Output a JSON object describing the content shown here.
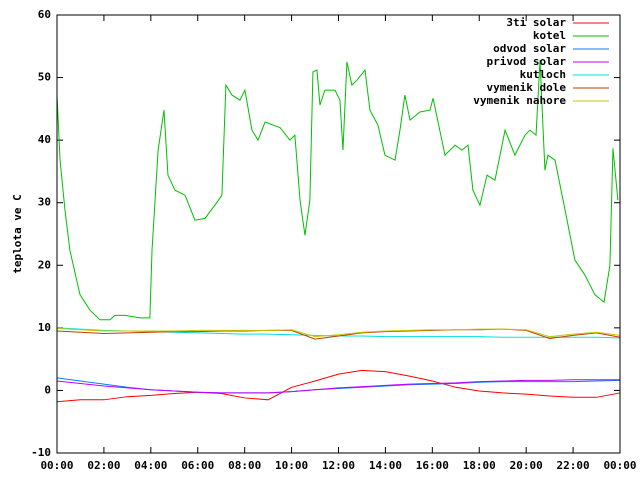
{
  "chart_data": {
    "type": "line",
    "ylabel": "teplota ve C",
    "xlim": [
      0,
      24
    ],
    "xticks": [
      {
        "value": 0,
        "label": "00:00"
      },
      {
        "value": 2,
        "label": "02:00"
      },
      {
        "value": 4,
        "label": "04:00"
      },
      {
        "value": 6,
        "label": "06:00"
      },
      {
        "value": 8,
        "label": "08:00"
      },
      {
        "value": 10,
        "label": "10:00"
      },
      {
        "value": 12,
        "label": "12:00"
      },
      {
        "value": 14,
        "label": "14:00"
      },
      {
        "value": 16,
        "label": "16:00"
      },
      {
        "value": 18,
        "label": "18:00"
      },
      {
        "value": 20,
        "label": "20:00"
      },
      {
        "value": 22,
        "label": "22:00"
      },
      {
        "value": 24,
        "label": "00:00"
      }
    ],
    "ylim": [
      -10,
      60
    ],
    "yticks": [
      -10,
      0,
      10,
      20,
      30,
      40,
      50,
      60
    ],
    "legend": "top-right",
    "x": [
      0,
      1,
      2,
      3,
      4,
      5,
      6,
      7,
      8,
      9,
      10,
      11,
      12,
      13,
      14,
      15,
      16,
      17,
      18,
      19,
      20,
      21,
      22,
      23,
      24
    ],
    "series": [
      {
        "name": "3ti solar",
        "color": "#ff0000",
        "values": [
          -1.8,
          -1.5,
          -1.5,
          -1.0,
          -0.8,
          -0.5,
          -0.3,
          -0.5,
          -1.2,
          -1.5,
          0.5,
          1.5,
          2.6,
          3.2,
          3.0,
          2.3,
          1.5,
          0.5,
          -0.1,
          -0.4,
          -0.6,
          -0.9,
          -1.1,
          -1.1,
          -0.4
        ]
      },
      {
        "name": "kotel",
        "color": "#00c000",
        "x": [
          0,
          0.13,
          0.34,
          0.55,
          0.98,
          1.41,
          1.83,
          2.26,
          2.47,
          2.9,
          3.54,
          3.96,
          4.05,
          4.31,
          4.56,
          4.73,
          5.03,
          5.46,
          5.88,
          6.31,
          6.73,
          7.03,
          7.2,
          7.46,
          7.8,
          8.01,
          8.31,
          8.57,
          8.87,
          9.51,
          9.93,
          10.14,
          10.36,
          10.57,
          10.78,
          10.91,
          11.08,
          11.21,
          11.42,
          11.85,
          12.06,
          12.19,
          12.36,
          12.57,
          12.79,
          13.13,
          13.34,
          13.68,
          13.98,
          14.41,
          14.62,
          14.83,
          15.05,
          15.47,
          15.9,
          16.03,
          16.54,
          16.97,
          17.26,
          17.52,
          17.73,
          18.03,
          18.33,
          18.67,
          19.1,
          19.52,
          19.95,
          20.16,
          20.42,
          20.59,
          20.8,
          20.93,
          21.23,
          21.66,
          22.08,
          22.51,
          22.93,
          23.32,
          23.57,
          23.7,
          23.91
        ],
        "values": [
          47.2,
          36.8,
          28.8,
          22.4,
          15.3,
          12.8,
          11.3,
          11.3,
          12,
          12,
          11.6,
          11.6,
          22.4,
          38.4,
          44.8,
          34.4,
          32,
          31.2,
          27.2,
          27.5,
          29.6,
          31.2,
          48.8,
          47.2,
          46.4,
          48,
          41.6,
          40,
          42.9,
          42,
          40,
          40.8,
          30.4,
          24.8,
          30.4,
          50.9,
          51.2,
          45.6,
          48,
          48,
          46.4,
          38.4,
          52.5,
          48.8,
          49.6,
          51.2,
          44.8,
          42.4,
          37.6,
          36.8,
          41.6,
          47.2,
          43.2,
          44.5,
          44.8,
          46.7,
          37.6,
          39.2,
          38.4,
          39.2,
          32,
          29.6,
          34.4,
          33.6,
          41.6,
          37.6,
          40.8,
          41.6,
          40.8,
          52.8,
          35.2,
          37.6,
          36.8,
          28.8,
          20.8,
          18.4,
          15.3,
          14.1,
          20,
          38.7,
          30.4
        ]
      },
      {
        "name": "odvod solar",
        "color": "#0080ff",
        "values": [
          2.0,
          1.5,
          1.0,
          0.5,
          0.1,
          -0.1,
          -0.3,
          -0.4,
          -0.4,
          -0.4,
          -0.2,
          0.1,
          0.3,
          0.5,
          0.7,
          0.9,
          1.0,
          1.1,
          1.3,
          1.4,
          1.4,
          1.4,
          1.4,
          1.5,
          1.6
        ]
      },
      {
        "name": "privod solar",
        "color": "#c000ff",
        "values": [
          1.5,
          1.1,
          0.7,
          0.4,
          0.1,
          -0.1,
          -0.3,
          -0.4,
          -0.4,
          -0.4,
          -0.2,
          0.1,
          0.4,
          0.6,
          0.8,
          1.0,
          1.1,
          1.2,
          1.4,
          1.5,
          1.6,
          1.6,
          1.7,
          1.7,
          1.7
        ]
      },
      {
        "name": "kutloch",
        "color": "#00e0e0",
        "values": [
          10.0,
          9.8,
          9.6,
          9.5,
          9.4,
          9.3,
          9.2,
          9.1,
          9.0,
          9.0,
          8.9,
          8.8,
          8.7,
          8.7,
          8.6,
          8.6,
          8.6,
          8.6,
          8.6,
          8.5,
          8.5,
          8.5,
          8.5,
          8.5,
          8.4
        ]
      },
      {
        "name": "vymenik dole",
        "color": "#c04000",
        "values": [
          9.5,
          9.3,
          9.1,
          9.2,
          9.3,
          9.4,
          9.4,
          9.5,
          9.5,
          9.6,
          9.6,
          8.2,
          8.7,
          9.2,
          9.4,
          9.5,
          9.6,
          9.7,
          9.7,
          9.8,
          9.6,
          8.3,
          8.8,
          9.2,
          8.5
        ]
      },
      {
        "name": "vymenik nahore",
        "color": "#c8c800",
        "values": [
          9.9,
          9.7,
          9.5,
          9.5,
          9.5,
          9.5,
          9.6,
          9.6,
          9.6,
          9.6,
          9.7,
          8.6,
          8.9,
          9.3,
          9.5,
          9.6,
          9.7,
          9.7,
          9.8,
          9.8,
          9.7,
          8.6,
          9.0,
          9.3,
          8.8
        ]
      }
    ]
  }
}
